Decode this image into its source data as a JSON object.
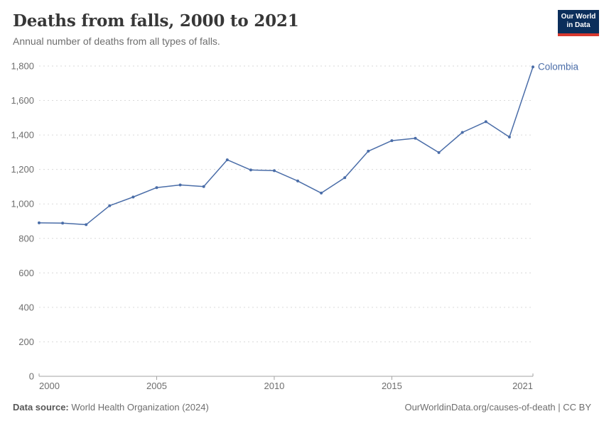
{
  "header": {
    "title": "Deaths from falls, 2000 to 2021",
    "subtitle": "Annual number of deaths from all types of falls.",
    "logo": {
      "line1": "Our World",
      "line2": "in Data"
    }
  },
  "chart_data": {
    "type": "line",
    "title": "Deaths from falls, 2000 to 2021",
    "xlabel": "",
    "ylabel": "",
    "xlim": [
      2000,
      2021
    ],
    "ylim": [
      0,
      1800
    ],
    "x_ticks": [
      2000,
      2005,
      2010,
      2015,
      2021
    ],
    "y_ticks": [
      0,
      200,
      400,
      600,
      800,
      1000,
      1200,
      1400,
      1600,
      1800
    ],
    "grid": "horizontal-dashed",
    "legend_position": "end-of-line-label",
    "series": [
      {
        "name": "Colombia",
        "color": "#4a6da8",
        "x": [
          2000,
          2001,
          2002,
          2003,
          2004,
          2005,
          2006,
          2007,
          2008,
          2009,
          2010,
          2011,
          2012,
          2013,
          2014,
          2015,
          2016,
          2017,
          2018,
          2019,
          2020,
          2021
        ],
        "values": [
          890,
          889,
          880,
          990,
          1040,
          1095,
          1110,
          1101,
          1256,
          1197,
          1193,
          1133,
          1063,
          1152,
          1306,
          1367,
          1381,
          1298,
          1415,
          1477,
          1388,
          1795
        ]
      }
    ]
  },
  "footer": {
    "source_label": "Data source:",
    "source_text": "World Health Organization (2024)",
    "credit_text": "OurWorldinData.org/causes-of-death | CC BY"
  },
  "colors": {
    "line": "#4a6da8",
    "grid": "#dadada",
    "axis": "#a3a3a3",
    "tick_text": "#6e6e6e",
    "logo_bg": "#0b2e5b",
    "logo_accent": "#d7382e"
  }
}
